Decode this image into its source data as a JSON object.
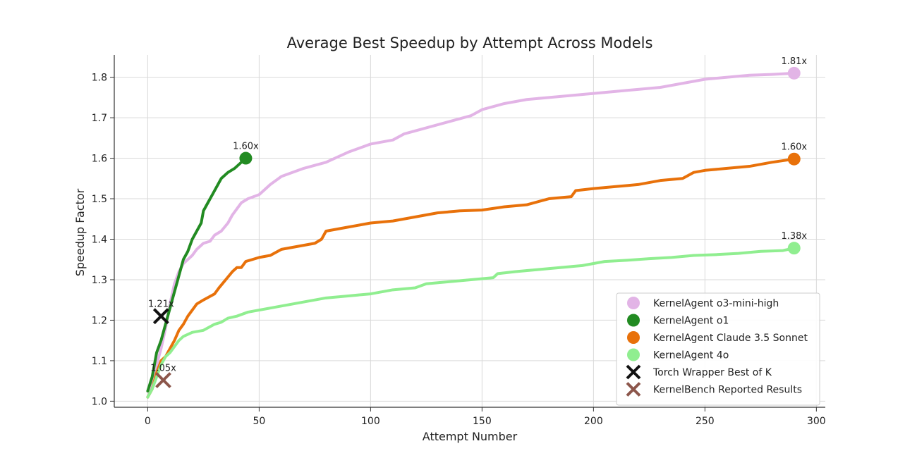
{
  "chart_data": {
    "type": "line",
    "title": "Average Best Speedup by Attempt Across Models",
    "xlabel": "Attempt Number",
    "ylabel": "Speedup Factor",
    "xlim": [
      -15,
      304
    ],
    "ylim": [
      0.985,
      1.855
    ],
    "x_ticks": [
      0,
      50,
      100,
      150,
      200,
      250,
      300
    ],
    "y_ticks": [
      1.0,
      1.1,
      1.2,
      1.3,
      1.4,
      1.5,
      1.6,
      1.7,
      1.8
    ],
    "x_tick_labels": [
      "0",
      "50",
      "100",
      "150",
      "200",
      "250",
      "300"
    ],
    "y_tick_labels": [
      "1.0",
      "1.1",
      "1.2",
      "1.3",
      "1.4",
      "1.5",
      "1.6",
      "1.7",
      "1.8"
    ],
    "grid": true,
    "legend_position": "bottom-right",
    "series": [
      {
        "name": "KernelAgent o3-mini-high",
        "color": "#e2b4e6",
        "end_label": "1.81x",
        "points": [
          [
            0,
            1.01
          ],
          [
            2,
            1.04
          ],
          [
            4,
            1.09
          ],
          [
            6,
            1.13
          ],
          [
            8,
            1.18
          ],
          [
            10,
            1.24
          ],
          [
            12,
            1.29
          ],
          [
            14,
            1.32
          ],
          [
            16,
            1.34
          ],
          [
            18,
            1.35
          ],
          [
            20,
            1.36
          ],
          [
            22,
            1.375
          ],
          [
            25,
            1.39
          ],
          [
            28,
            1.395
          ],
          [
            30,
            1.41
          ],
          [
            33,
            1.42
          ],
          [
            36,
            1.44
          ],
          [
            38,
            1.46
          ],
          [
            40,
            1.475
          ],
          [
            42,
            1.49
          ],
          [
            45,
            1.5
          ],
          [
            50,
            1.51
          ],
          [
            55,
            1.535
          ],
          [
            60,
            1.555
          ],
          [
            65,
            1.565
          ],
          [
            70,
            1.575
          ],
          [
            80,
            1.59
          ],
          [
            90,
            1.615
          ],
          [
            100,
            1.635
          ],
          [
            110,
            1.645
          ],
          [
            115,
            1.66
          ],
          [
            125,
            1.675
          ],
          [
            135,
            1.69
          ],
          [
            145,
            1.705
          ],
          [
            150,
            1.72
          ],
          [
            160,
            1.735
          ],
          [
            170,
            1.745
          ],
          [
            180,
            1.75
          ],
          [
            190,
            1.755
          ],
          [
            200,
            1.76
          ],
          [
            210,
            1.765
          ],
          [
            220,
            1.77
          ],
          [
            230,
            1.775
          ],
          [
            240,
            1.785
          ],
          [
            250,
            1.795
          ],
          [
            260,
            1.8
          ],
          [
            270,
            1.805
          ],
          [
            280,
            1.807
          ],
          [
            290,
            1.81
          ]
        ]
      },
      {
        "name": "KernelAgent o1",
        "color": "#228b22",
        "end_label": "1.60x",
        "points": [
          [
            0,
            1.025
          ],
          [
            2,
            1.06
          ],
          [
            4,
            1.12
          ],
          [
            6,
            1.15
          ],
          [
            8,
            1.19
          ],
          [
            10,
            1.23
          ],
          [
            12,
            1.27
          ],
          [
            14,
            1.31
          ],
          [
            16,
            1.35
          ],
          [
            18,
            1.37
          ],
          [
            20,
            1.4
          ],
          [
            22,
            1.42
          ],
          [
            24,
            1.44
          ],
          [
            25,
            1.47
          ],
          [
            27,
            1.49
          ],
          [
            29,
            1.51
          ],
          [
            31,
            1.53
          ],
          [
            33,
            1.55
          ],
          [
            36,
            1.565
          ],
          [
            39,
            1.575
          ],
          [
            42,
            1.59
          ],
          [
            44,
            1.6
          ]
        ]
      },
      {
        "name": "KernelAgent Claude 3.5 Sonnet",
        "color": "#e8710a",
        "end_label": "1.60x",
        "points": [
          [
            0,
            1.01
          ],
          [
            2,
            1.03
          ],
          [
            4,
            1.07
          ],
          [
            6,
            1.1
          ],
          [
            8,
            1.11
          ],
          [
            10,
            1.13
          ],
          [
            12,
            1.15
          ],
          [
            14,
            1.175
          ],
          [
            16,
            1.19
          ],
          [
            18,
            1.21
          ],
          [
            20,
            1.225
          ],
          [
            22,
            1.24
          ],
          [
            25,
            1.25
          ],
          [
            30,
            1.265
          ],
          [
            32,
            1.28
          ],
          [
            35,
            1.3
          ],
          [
            38,
            1.32
          ],
          [
            40,
            1.33
          ],
          [
            42,
            1.33
          ],
          [
            44,
            1.345
          ],
          [
            47,
            1.35
          ],
          [
            50,
            1.355
          ],
          [
            55,
            1.36
          ],
          [
            60,
            1.375
          ],
          [
            65,
            1.38
          ],
          [
            70,
            1.385
          ],
          [
            75,
            1.39
          ],
          [
            78,
            1.4
          ],
          [
            80,
            1.42
          ],
          [
            85,
            1.425
          ],
          [
            90,
            1.43
          ],
          [
            100,
            1.44
          ],
          [
            110,
            1.445
          ],
          [
            120,
            1.455
          ],
          [
            130,
            1.465
          ],
          [
            140,
            1.47
          ],
          [
            150,
            1.472
          ],
          [
            160,
            1.48
          ],
          [
            170,
            1.485
          ],
          [
            180,
            1.5
          ],
          [
            190,
            1.505
          ],
          [
            192,
            1.52
          ],
          [
            200,
            1.525
          ],
          [
            210,
            1.53
          ],
          [
            220,
            1.535
          ],
          [
            230,
            1.545
          ],
          [
            240,
            1.55
          ],
          [
            245,
            1.565
          ],
          [
            250,
            1.57
          ],
          [
            260,
            1.575
          ],
          [
            270,
            1.58
          ],
          [
            280,
            1.59
          ],
          [
            290,
            1.598
          ]
        ]
      },
      {
        "name": "KernelAgent 4o",
        "color": "#90ee90",
        "end_label": "1.38x",
        "points": [
          [
            0,
            1.01
          ],
          [
            2,
            1.03
          ],
          [
            4,
            1.06
          ],
          [
            6,
            1.09
          ],
          [
            8,
            1.11
          ],
          [
            10,
            1.12
          ],
          [
            12,
            1.135
          ],
          [
            14,
            1.15
          ],
          [
            16,
            1.16
          ],
          [
            20,
            1.17
          ],
          [
            25,
            1.175
          ],
          [
            30,
            1.19
          ],
          [
            33,
            1.195
          ],
          [
            36,
            1.205
          ],
          [
            40,
            1.21
          ],
          [
            45,
            1.22
          ],
          [
            50,
            1.225
          ],
          [
            55,
            1.23
          ],
          [
            60,
            1.235
          ],
          [
            70,
            1.245
          ],
          [
            80,
            1.255
          ],
          [
            90,
            1.26
          ],
          [
            100,
            1.265
          ],
          [
            110,
            1.275
          ],
          [
            120,
            1.28
          ],
          [
            125,
            1.29
          ],
          [
            135,
            1.295
          ],
          [
            145,
            1.3
          ],
          [
            155,
            1.305
          ],
          [
            157,
            1.315
          ],
          [
            165,
            1.32
          ],
          [
            175,
            1.325
          ],
          [
            185,
            1.33
          ],
          [
            195,
            1.335
          ],
          [
            205,
            1.345
          ],
          [
            215,
            1.348
          ],
          [
            225,
            1.352
          ],
          [
            235,
            1.355
          ],
          [
            245,
            1.36
          ],
          [
            255,
            1.362
          ],
          [
            265,
            1.365
          ],
          [
            275,
            1.37
          ],
          [
            285,
            1.372
          ],
          [
            290,
            1.378
          ]
        ]
      }
    ],
    "markers": [
      {
        "name": "Torch Wrapper Best of K",
        "color": "#111111",
        "x": 6,
        "y": 1.21,
        "label": "1.21x"
      },
      {
        "name": "KernelBench Reported Results",
        "color": "#8c564b",
        "x": 7,
        "y": 1.052,
        "label": "1.05x"
      }
    ]
  }
}
